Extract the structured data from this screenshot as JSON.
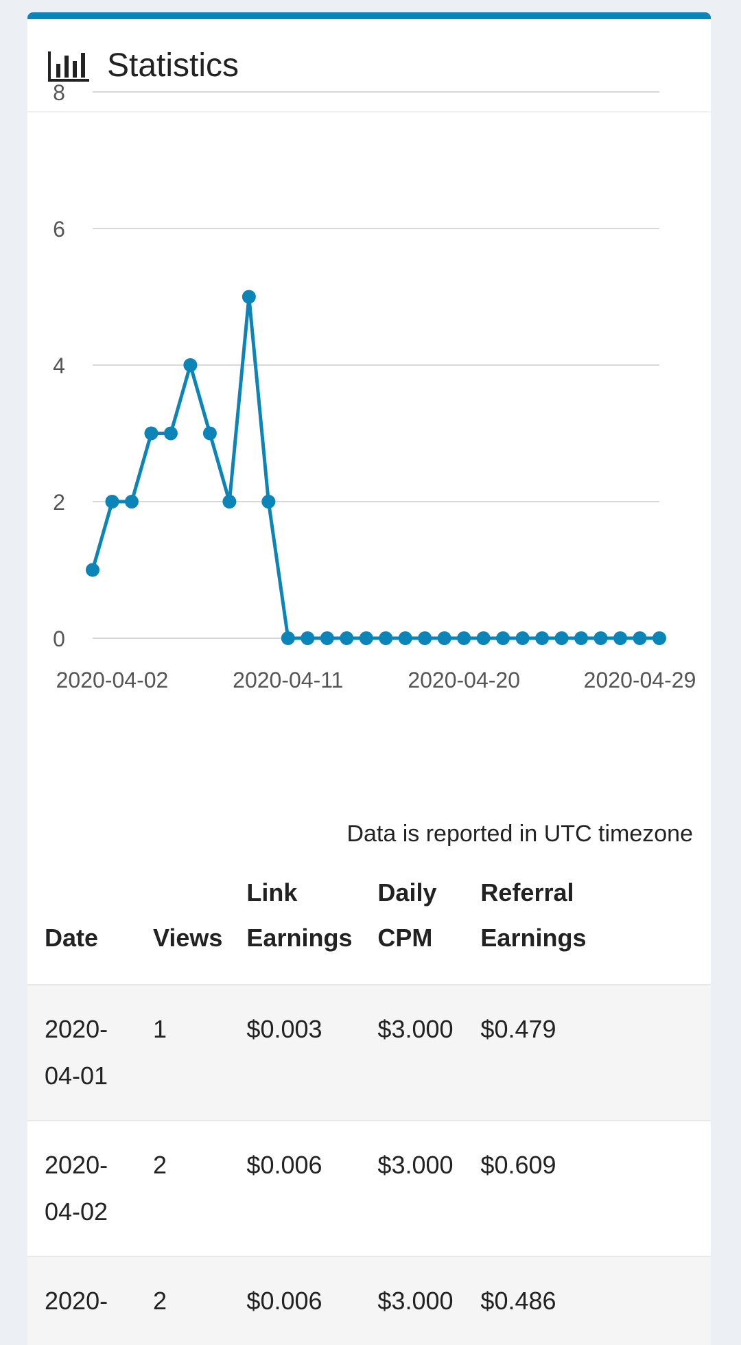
{
  "header": {
    "title": "Statistics",
    "icon": "bar-chart-icon"
  },
  "chart_data": {
    "type": "line",
    "x": [
      "2020-04-01",
      "2020-04-02",
      "2020-04-03",
      "2020-04-04",
      "2020-04-05",
      "2020-04-06",
      "2020-04-07",
      "2020-04-08",
      "2020-04-09",
      "2020-04-10",
      "2020-04-11",
      "2020-04-12",
      "2020-04-13",
      "2020-04-14",
      "2020-04-15",
      "2020-04-16",
      "2020-04-17",
      "2020-04-18",
      "2020-04-19",
      "2020-04-20",
      "2020-04-21",
      "2020-04-22",
      "2020-04-23",
      "2020-04-24",
      "2020-04-25",
      "2020-04-26",
      "2020-04-27",
      "2020-04-28",
      "2020-04-29",
      "2020-04-30"
    ],
    "series": [
      {
        "values": [
          1,
          2,
          2,
          3,
          3,
          4,
          3,
          2,
          5,
          2,
          0,
          0,
          0,
          0,
          0,
          0,
          0,
          0,
          0,
          0,
          0,
          0,
          0,
          0,
          0,
          0,
          0,
          0,
          0,
          0
        ],
        "color": "#0b84b8"
      }
    ],
    "x_tick_labels": [
      "2020-04-02",
      "2020-04-11",
      "2020-04-20",
      "2020-04-29"
    ],
    "y_ticks": [
      0,
      2,
      4,
      6,
      8
    ],
    "ylim": [
      0,
      8
    ],
    "grid": true,
    "legend": "none"
  },
  "note": "Data is reported in UTC timezone",
  "table": {
    "headers": {
      "date": "Date",
      "views": "Views",
      "link_1": "Link",
      "link_2": "Earnings",
      "cpm_1": "Daily",
      "cpm_2": "CPM",
      "ref_1": "Referral",
      "ref_2": "Earnings"
    },
    "rows": [
      {
        "date_1": "2020-",
        "date_2": "04-01",
        "views": "1",
        "link": "$0.003",
        "cpm": "$3.000",
        "ref": "$0.479"
      },
      {
        "date_1": "2020-",
        "date_2": "04-02",
        "views": "2",
        "link": "$0.006",
        "cpm": "$3.000",
        "ref": "$0.609"
      },
      {
        "date_1": "2020-",
        "date_2": "",
        "views": "2",
        "link": "$0.006",
        "cpm": "$3.000",
        "ref": "$0.486"
      }
    ]
  }
}
